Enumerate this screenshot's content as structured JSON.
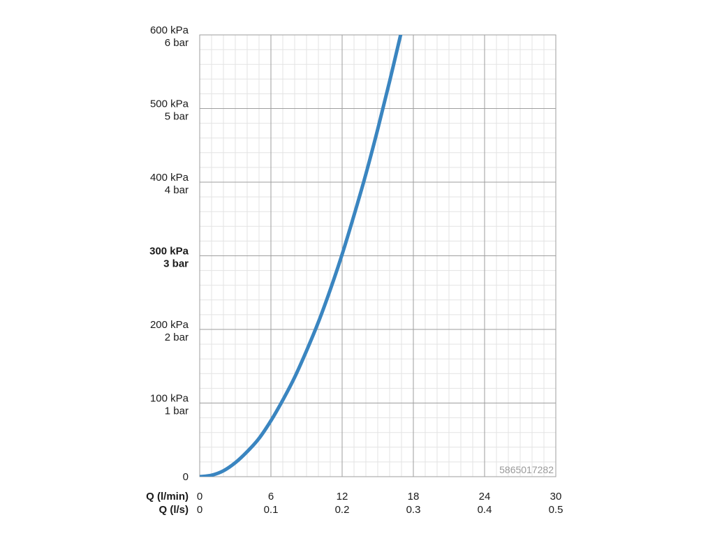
{
  "chart_data": {
    "type": "line",
    "x_axes": [
      {
        "label": "Q (l/min)",
        "ticks": [
          "0",
          "6",
          "12",
          "18",
          "24",
          "30"
        ],
        "range": [
          0,
          30
        ]
      },
      {
        "label": "Q (l/s)",
        "ticks": [
          "0",
          "0.1",
          "0.2",
          "0.3",
          "0.4",
          "0.5"
        ],
        "range": [
          0,
          0.5
        ]
      }
    ],
    "y_axis": {
      "range": [
        0,
        600
      ],
      "ticks": [
        {
          "value": 0,
          "lines": [
            "0"
          ],
          "bold": false
        },
        {
          "value": 100,
          "lines": [
            "100 kPa",
            "1 bar"
          ],
          "bold": false
        },
        {
          "value": 200,
          "lines": [
            "200 kPa",
            "2 bar"
          ],
          "bold": false
        },
        {
          "value": 300,
          "lines": [
            "300 kPa",
            "3 bar"
          ],
          "bold": true
        },
        {
          "value": 400,
          "lines": [
            "400 kPa",
            "4 bar"
          ],
          "bold": false
        },
        {
          "value": 500,
          "lines": [
            "500 kPa",
            "5 bar"
          ],
          "bold": false
        },
        {
          "value": 600,
          "lines": [
            "600 kPa",
            "6 bar"
          ],
          "bold": false
        }
      ]
    },
    "series": [
      {
        "color": "#3a85c0",
        "points": [
          {
            "x": 0,
            "y": 0
          },
          {
            "x": 1,
            "y": 2
          },
          {
            "x": 2,
            "y": 8
          },
          {
            "x": 3,
            "y": 19
          },
          {
            "x": 4,
            "y": 34
          },
          {
            "x": 5,
            "y": 52
          },
          {
            "x": 6,
            "y": 76
          },
          {
            "x": 7,
            "y": 104
          },
          {
            "x": 8,
            "y": 135
          },
          {
            "x": 9,
            "y": 171
          },
          {
            "x": 10,
            "y": 210
          },
          {
            "x": 11,
            "y": 254
          },
          {
            "x": 12,
            "y": 302
          },
          {
            "x": 13,
            "y": 355
          },
          {
            "x": 14,
            "y": 411
          },
          {
            "x": 15,
            "y": 472
          },
          {
            "x": 16,
            "y": 537
          },
          {
            "x": 17,
            "y": 605
          }
        ]
      }
    ],
    "grid": true,
    "grid_color": "#9e9e9e",
    "minor_grid_color": "#e3e3e3"
  },
  "watermark": "5865017282"
}
